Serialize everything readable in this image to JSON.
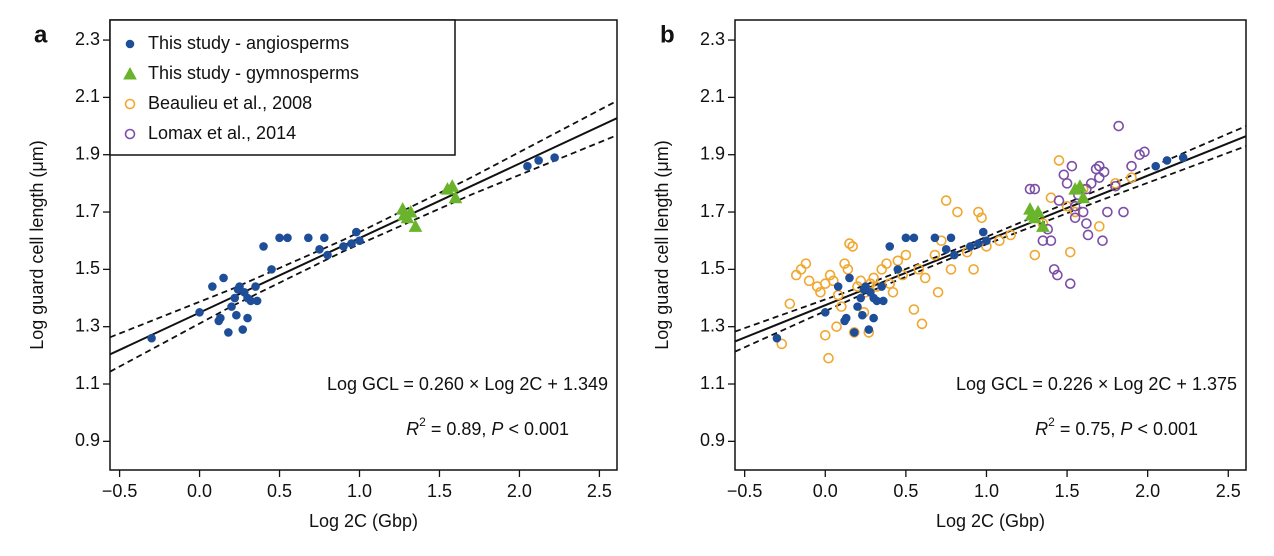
{
  "chart_data": [
    {
      "type": "scatter",
      "panel_label": "a",
      "x_label": "Log 2C (Gbp)",
      "y_label": "Log guard cell length (μm)",
      "xlim": [
        -0.56,
        2.61
      ],
      "ylim": [
        0.8,
        2.37
      ],
      "xticks": [
        {
          "value": -0.5,
          "label": "−0.5"
        },
        {
          "value": 0,
          "label": "0.0"
        },
        0.5,
        {
          "value": 1,
          "label": "1.0"
        },
        1.5,
        {
          "value": 2,
          "label": "2.0"
        },
        2.5
      ],
      "yticks": [
        0.9,
        1.1,
        1.3,
        1.5,
        1.7,
        1.9,
        2.1,
        2.3
      ],
      "legend": "upper left",
      "equation": "Log GCL = 0.260 × Log 2C + 1.349",
      "stats": [
        "R",
        "2",
        " = 0.89, ",
        "P",
        " < 0.001"
      ],
      "fit": {
        "slope": 0.26,
        "intercept": 1.349
      },
      "band_x": [
        -0.56,
        0.2,
        0.9,
        1.7,
        2.61
      ],
      "band_upper": [
        1.263,
        1.431,
        1.603,
        1.821,
        2.088
      ],
      "band_lower": [
        1.143,
        1.371,
        1.563,
        1.761,
        1.968
      ],
      "series": [
        {
          "name": "This study - angiosperms",
          "color": "#1f4e99",
          "marker": "circle",
          "filled": true,
          "x": [
            -0.3,
            0.0,
            0.08,
            0.12,
            0.13,
            0.15,
            0.18,
            0.2,
            0.22,
            0.23,
            0.24,
            0.25,
            0.27,
            0.28,
            0.3,
            0.3,
            0.32,
            0.35,
            0.36,
            0.4,
            0.45,
            0.5,
            0.55,
            0.68,
            0.75,
            0.78,
            0.8,
            0.9,
            0.95,
            0.98,
            1.0,
            2.05,
            2.12,
            2.22
          ],
          "values": [
            1.26,
            1.35,
            1.44,
            1.32,
            1.33,
            1.47,
            1.28,
            1.37,
            1.4,
            1.34,
            1.43,
            1.44,
            1.29,
            1.42,
            1.33,
            1.4,
            1.39,
            1.44,
            1.39,
            1.58,
            1.5,
            1.61,
            1.61,
            1.61,
            1.57,
            1.61,
            1.55,
            1.58,
            1.59,
            1.63,
            1.6,
            1.86,
            1.88,
            1.89
          ]
        },
        {
          "name": "This study - gymnosperms",
          "color": "#6ab42d",
          "marker": "triangle",
          "filled": true,
          "x": [
            1.27,
            1.28,
            1.3,
            1.32,
            1.35,
            1.55,
            1.58,
            1.6
          ],
          "values": [
            1.71,
            1.69,
            1.68,
            1.7,
            1.65,
            1.78,
            1.79,
            1.75
          ]
        },
        {
          "name": "Beaulieu et al., 2008",
          "color": "#f0a830",
          "marker": "circle",
          "filled": false,
          "x": [],
          "values": []
        },
        {
          "name": "Lomax et al., 2014",
          "color": "#7b4fa6",
          "marker": "circle",
          "filled": false,
          "x": [],
          "values": []
        }
      ]
    },
    {
      "type": "scatter",
      "panel_label": "b",
      "x_label": "Log 2C (Gbp)",
      "y_label": "Log guard cell length (μm)",
      "xlim": [
        -0.56,
        2.61
      ],
      "ylim": [
        0.8,
        2.37
      ],
      "xticks": [
        {
          "value": -0.5,
          "label": "−0.5"
        },
        {
          "value": 0,
          "label": "0.0"
        },
        0.5,
        {
          "value": 1,
          "label": "1.0"
        },
        1.5,
        {
          "value": 2,
          "label": "2.0"
        },
        2.5
      ],
      "yticks": [
        0.9,
        1.1,
        1.3,
        1.5,
        1.7,
        1.9,
        2.1,
        2.3
      ],
      "equation": "Log GCL = 0.226 × Log 2C + 1.375",
      "stats": [
        "R",
        "2",
        " = 0.75, ",
        "P",
        " < 0.001"
      ],
      "fit": {
        "slope": 0.226,
        "intercept": 1.375
      },
      "band_x": [
        -0.56,
        0.2,
        0.9,
        1.7,
        2.61
      ],
      "band_upper": [
        1.283,
        1.435,
        1.59,
        1.779,
        2.0
      ],
      "band_lower": [
        1.213,
        1.405,
        1.566,
        1.739,
        1.93
      ],
      "series": [
        {
          "color": "#f0a830",
          "marker": "circle",
          "filled": false,
          "x": [
            -0.27,
            -0.22,
            -0.18,
            -0.15,
            -0.12,
            -0.1,
            -0.05,
            -0.03,
            0.0,
            0.0,
            0.02,
            0.03,
            0.05,
            0.07,
            0.08,
            0.1,
            0.12,
            0.14,
            0.15,
            0.17,
            0.18,
            0.2,
            0.22,
            0.24,
            0.25,
            0.27,
            0.28,
            0.3,
            0.32,
            0.35,
            0.38,
            0.4,
            0.42,
            0.45,
            0.48,
            0.5,
            0.55,
            0.58,
            0.6,
            0.62,
            0.68,
            0.7,
            0.72,
            0.75,
            0.78,
            0.82,
            0.88,
            0.92,
            0.95,
            0.97,
            1.0,
            1.08,
            1.15,
            1.3,
            1.35,
            1.4,
            1.45,
            1.5,
            1.52,
            1.55,
            1.6,
            1.7,
            1.8,
            1.9
          ],
          "values": [
            1.24,
            1.38,
            1.48,
            1.5,
            1.52,
            1.46,
            1.44,
            1.42,
            1.45,
            1.27,
            1.19,
            1.48,
            1.46,
            1.3,
            1.41,
            1.37,
            1.52,
            1.5,
            1.59,
            1.58,
            1.28,
            1.44,
            1.46,
            1.35,
            1.42,
            1.28,
            1.45,
            1.47,
            1.44,
            1.5,
            1.52,
            1.45,
            1.42,
            1.53,
            1.48,
            1.55,
            1.36,
            1.5,
            1.31,
            1.47,
            1.55,
            1.42,
            1.6,
            1.74,
            1.5,
            1.7,
            1.56,
            1.5,
            1.7,
            1.68,
            1.58,
            1.6,
            1.62,
            1.55,
            1.66,
            1.75,
            1.88,
            1.72,
            1.56,
            1.7,
            1.78,
            1.65,
            1.8,
            1.82
          ]
        },
        {
          "color": "#7b4fa6",
          "marker": "circle",
          "filled": false,
          "x": [
            1.27,
            1.3,
            1.35,
            1.38,
            1.4,
            1.42,
            1.44,
            1.45,
            1.48,
            1.5,
            1.52,
            1.53,
            1.55,
            1.57,
            1.6,
            1.62,
            1.63,
            1.65,
            1.68,
            1.7,
            1.7,
            1.72,
            1.73,
            1.75,
            1.8,
            1.82,
            1.85,
            1.9,
            1.95,
            1.98,
            1.62,
            1.55
          ],
          "values": [
            1.78,
            1.78,
            1.6,
            1.64,
            1.6,
            1.5,
            1.48,
            1.74,
            1.83,
            1.8,
            1.45,
            1.86,
            1.72,
            1.76,
            1.7,
            1.78,
            1.62,
            1.8,
            1.85,
            1.86,
            1.82,
            1.6,
            1.84,
            1.7,
            1.79,
            2.0,
            1.7,
            1.86,
            1.9,
            1.91,
            1.66,
            1.68
          ]
        },
        {
          "color": "#1f4e99",
          "marker": "circle",
          "filled": true,
          "x": [
            -0.3,
            0.0,
            0.08,
            0.12,
            0.13,
            0.15,
            0.18,
            0.2,
            0.22,
            0.23,
            0.24,
            0.25,
            0.27,
            0.28,
            0.3,
            0.3,
            0.32,
            0.35,
            0.36,
            0.4,
            0.45,
            0.5,
            0.55,
            0.68,
            0.75,
            0.78,
            0.8,
            0.9,
            0.95,
            0.98,
            1.0,
            2.05,
            2.12,
            2.22
          ],
          "values": [
            1.26,
            1.35,
            1.44,
            1.32,
            1.33,
            1.47,
            1.28,
            1.37,
            1.4,
            1.34,
            1.43,
            1.44,
            1.29,
            1.42,
            1.33,
            1.4,
            1.39,
            1.44,
            1.39,
            1.58,
            1.5,
            1.61,
            1.61,
            1.61,
            1.57,
            1.61,
            1.55,
            1.58,
            1.59,
            1.63,
            1.6,
            1.86,
            1.88,
            1.89
          ]
        },
        {
          "color": "#6ab42d",
          "marker": "triangle",
          "filled": true,
          "x": [
            1.27,
            1.28,
            1.3,
            1.32,
            1.35,
            1.55,
            1.58,
            1.6
          ],
          "values": [
            1.71,
            1.69,
            1.68,
            1.7,
            1.65,
            1.78,
            1.79,
            1.75
          ]
        }
      ]
    }
  ]
}
